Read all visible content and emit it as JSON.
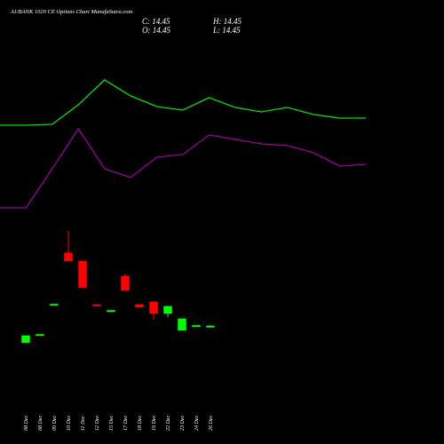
{
  "chart_data": [
    {
      "type": "candlestick",
      "title": "AUBANK 1020  CE Options Chart MunafaSutra.com",
      "ohlc_text": {
        "close": "C: 14.45",
        "high": "H: 14.45",
        "open": "O: 14.45",
        "low": "L: 14.45"
      },
      "categories": [
        "08 Dec",
        "08 Dec",
        "09 Dec",
        "10 Dec",
        "11 Dec",
        "12 Dec",
        "15 Dec",
        "17 Dec",
        "18 Dec",
        "19 Dec",
        "22 Dec",
        "23 Dec",
        "24 Dec",
        "26 Dec"
      ],
      "open": [
        12.55,
        13.4,
        16.8,
        22.65,
        21.75,
        16.85,
        16.1,
        20.05,
        16.85,
        17.15,
        15.85,
        13.95,
        14.4,
        14.45
      ],
      "high": [
        13.35,
        13.5,
        16.9,
        25.15,
        21.75,
        16.85,
        16.2,
        20.35,
        16.85,
        17.15,
        16.65,
        15.25,
        14.5,
        14.45
      ],
      "low": [
        12.55,
        13.4,
        16.8,
        21.75,
        18.75,
        16.75,
        16.1,
        18.45,
        16.55,
        15.15,
        15.45,
        13.95,
        14.4,
        14.45
      ],
      "close": [
        13.35,
        13.5,
        16.9,
        21.75,
        18.75,
        16.75,
        16.2,
        18.45,
        16.55,
        15.85,
        16.65,
        15.25,
        14.5,
        14.45
      ],
      "up_color": "#00ff00",
      "down_color": "#ff0000",
      "ylim": [
        1.15,
        51.15
      ]
    },
    {
      "type": "line",
      "series": [
        {
          "color": "#00e000",
          "values": [
            54.5,
            54.5,
            55,
            66,
            80,
            71,
            65,
            63,
            70,
            64.5,
            62,
            64.5,
            60.5,
            58.5,
            58.5
          ]
        },
        {
          "color": "#990099",
          "values": [
            8,
            8,
            30,
            52.5,
            30,
            25,
            36.5,
            38,
            49,
            46.5,
            44,
            43,
            39,
            31.5,
            32.5
          ]
        }
      ],
      "ylim": [
        0,
        100
      ]
    }
  ]
}
